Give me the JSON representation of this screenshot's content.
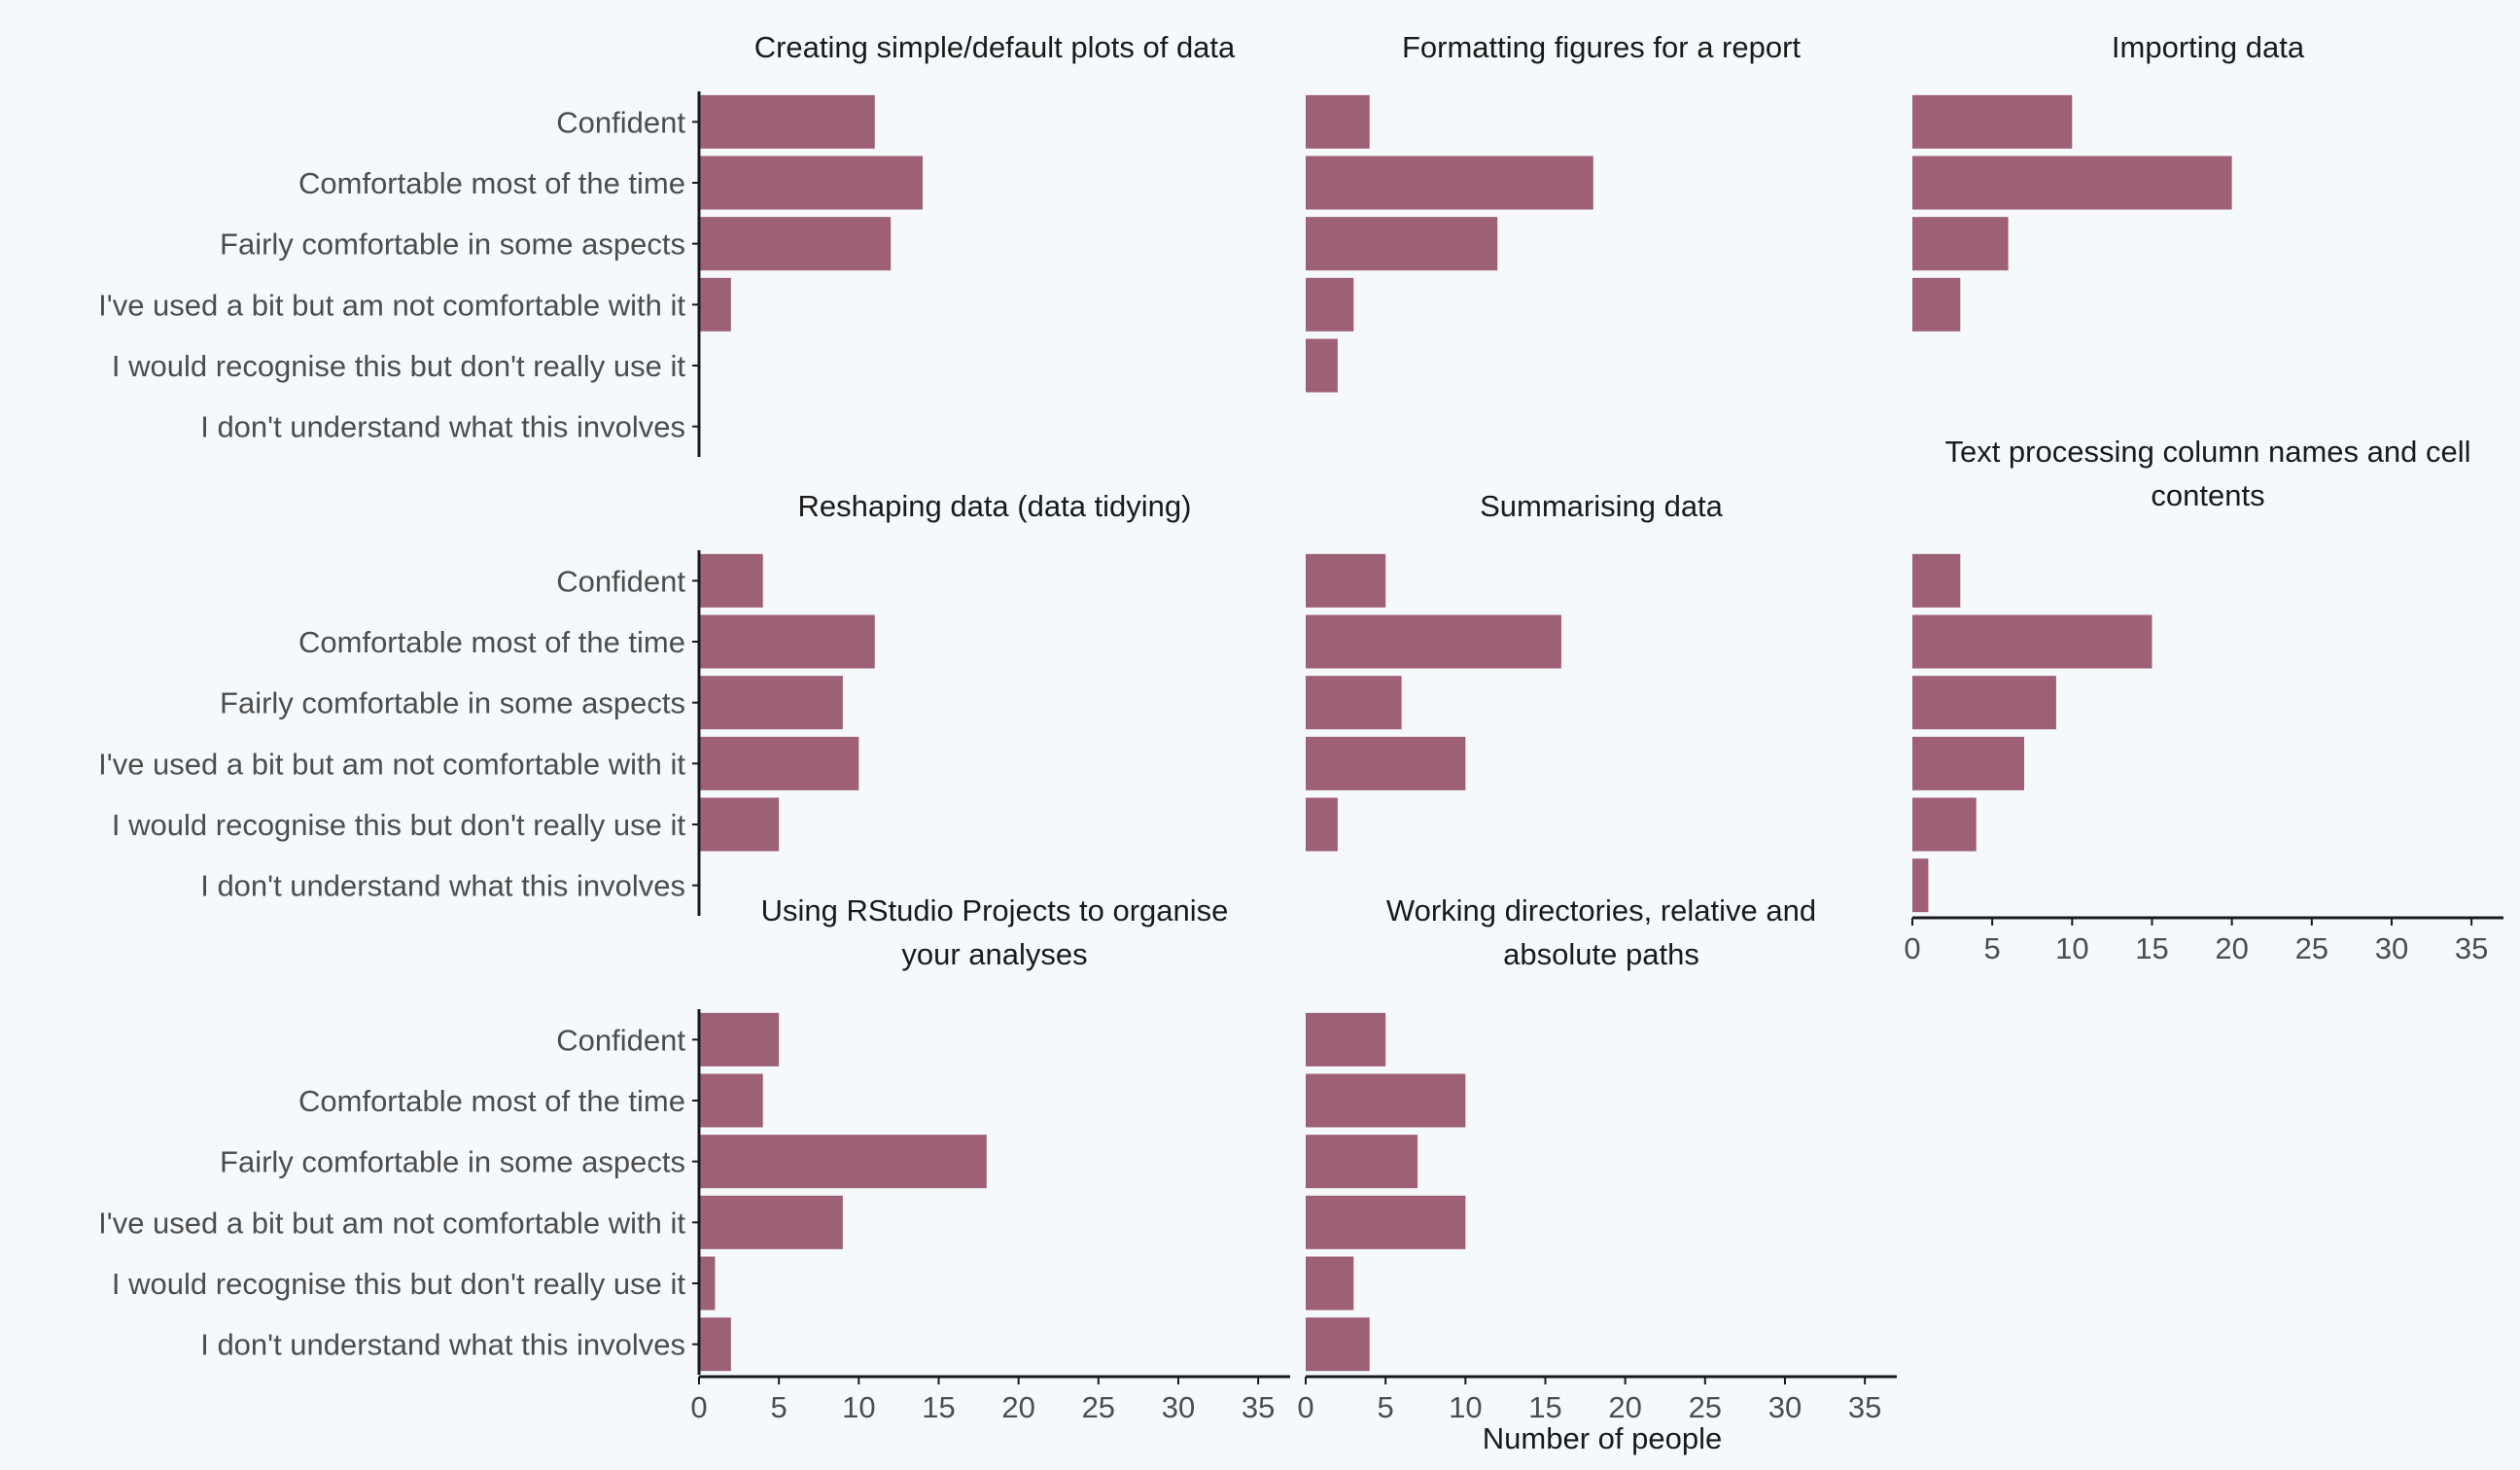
{
  "chart_data": {
    "type": "bar",
    "orientation": "horizontal",
    "xlabel": "Number of people",
    "ylabel": "",
    "xlim": [
      0,
      37
    ],
    "x_ticks": [
      "0",
      "5",
      "10",
      "15",
      "20",
      "25",
      "30",
      "35"
    ],
    "bar_color": "#9e6075",
    "background": "#f5f9fc",
    "grid": false,
    "categories": [
      "Confident",
      "Comfortable most of the time",
      "Fairly comfortable in some aspects",
      "I've used a bit but am not comfortable with it",
      "I would recognise this but don't really use it",
      "I don't understand what this involves"
    ],
    "panels": [
      {
        "title": [
          "Creating simple/default plots of data"
        ],
        "values": [
          11,
          14,
          12,
          2,
          0,
          0
        ]
      },
      {
        "title": [
          "Formatting figures for a report"
        ],
        "values": [
          4,
          18,
          12,
          3,
          2,
          0
        ]
      },
      {
        "title": [
          "Importing data"
        ],
        "values": [
          10,
          20,
          6,
          3,
          0,
          0
        ]
      },
      {
        "title": [
          "Reshaping data (data tidying)"
        ],
        "values": [
          4,
          11,
          9,
          10,
          5,
          0
        ]
      },
      {
        "title": [
          "Summarising data"
        ],
        "values": [
          5,
          16,
          6,
          10,
          2,
          0
        ]
      },
      {
        "title": [
          "Text processing column names and cell",
          "contents"
        ],
        "values": [
          3,
          15,
          9,
          7,
          4,
          1
        ]
      },
      {
        "title": [
          "Using RStudio Projects to organise",
          "your analyses"
        ],
        "values": [
          5,
          4,
          18,
          9,
          1,
          2
        ]
      },
      {
        "title": [
          "Working directories, relative and",
          "absolute paths"
        ],
        "values": [
          5,
          10,
          7,
          10,
          3,
          4
        ]
      }
    ]
  }
}
